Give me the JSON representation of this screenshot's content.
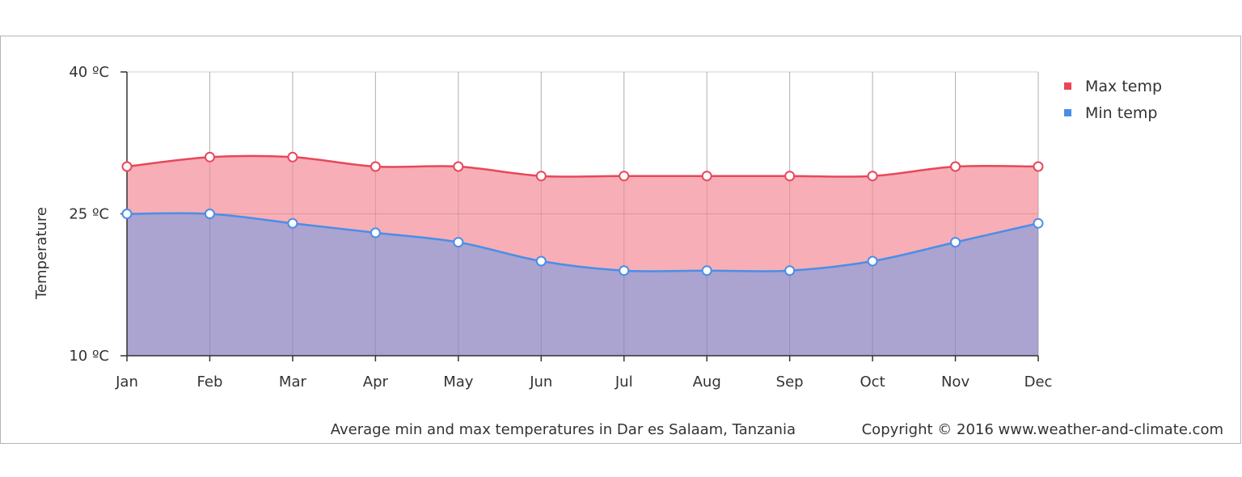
{
  "chart_data": {
    "type": "area",
    "title": "",
    "caption": "Average min and max temperatures in Dar es Salaam, Tanzania",
    "copyright": "Copyright © 2016 www.weather-and-climate.com",
    "xlabel": "",
    "ylabel": "Temperature",
    "categories": [
      "Jan",
      "Feb",
      "Mar",
      "Apr",
      "May",
      "Jun",
      "Jul",
      "Aug",
      "Sep",
      "Oct",
      "Nov",
      "Dec"
    ],
    "ylim": [
      10,
      40
    ],
    "y_ticks": [
      {
        "value": 40,
        "label": "40 ºC"
      },
      {
        "value": 25,
        "label": "25 ºC"
      },
      {
        "value": 10,
        "label": "10 ºC"
      }
    ],
    "grid": true,
    "legend_position": "top-right",
    "series": [
      {
        "name": "Max temp",
        "color": "#e8475a",
        "fill": "#f7aeb6",
        "values": [
          30,
          31,
          31,
          30,
          30,
          29,
          29,
          29,
          29,
          29,
          30,
          30
        ]
      },
      {
        "name": "Min temp",
        "color": "#4a8ee8",
        "fill": "#aba3d0",
        "values": [
          25,
          25,
          24,
          23,
          22,
          20,
          19,
          19,
          19,
          20,
          22,
          24
        ]
      }
    ]
  }
}
